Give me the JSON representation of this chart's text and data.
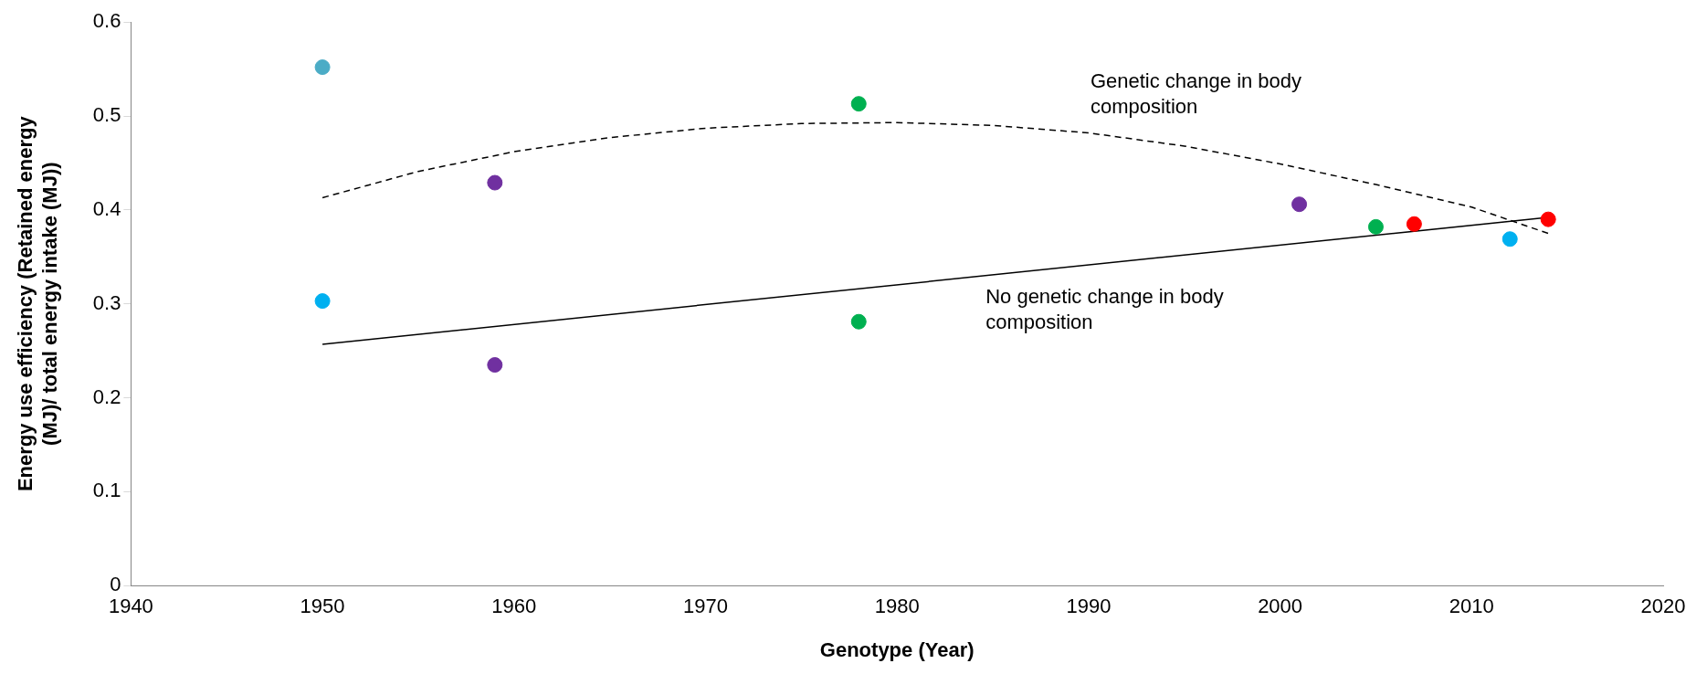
{
  "chart_data": {
    "type": "scatter",
    "xlabel": "Genotype (Year)",
    "ylabel": "Energy use efficiency (Retained energy (MJ)/ total energy intake (MJ))",
    "xlim": [
      1940,
      2020
    ],
    "xticks": [
      1940,
      1950,
      1960,
      1970,
      1980,
      1990,
      2000,
      2010,
      2020
    ],
    "ylim": [
      0,
      0.6
    ],
    "yticks": [
      0,
      0.1,
      0.2,
      0.3,
      0.4,
      0.5,
      0.6
    ],
    "grid": false,
    "legend": false,
    "series": [
      {
        "type": "scatter",
        "marker": "circle",
        "x": [
          1950,
          1959,
          1978,
          2001,
          2005,
          2007,
          2012,
          2014
        ],
        "values": [
          0.303,
          0.235,
          0.281,
          0.406,
          0.382,
          0.385,
          0.369,
          0.39
        ],
        "colors": [
          "#00b0f0",
          "#7030a0",
          "#00b050",
          "#7030a0",
          "#00b050",
          "#ff0000",
          "#00b0f0",
          "#ff0000"
        ]
      },
      {
        "type": "scatter",
        "marker": "circle",
        "x": [
          1950,
          1959,
          1978
        ],
        "values": [
          0.552,
          0.429,
          0.513
        ],
        "colors": [
          "#4bacc6",
          "#7030a0",
          "#00b050"
        ]
      },
      {
        "type": "line",
        "color": "#000000",
        "line_style": "solid",
        "x": [
          1950,
          2014
        ],
        "values": [
          0.257,
          0.392
        ]
      },
      {
        "type": "line",
        "color": "#000000",
        "line_style": "dashed",
        "x": [
          1950,
          1955,
          1960,
          1965,
          1970,
          1975,
          1980,
          1985,
          1990,
          1995,
          2000,
          2005,
          2010,
          2014
        ],
        "values": [
          0.413,
          0.441,
          0.462,
          0.477,
          0.487,
          0.492,
          0.493,
          0.49,
          0.482,
          0.468,
          0.449,
          0.427,
          0.403,
          0.375
        ]
      }
    ],
    "annotations": [
      "Genetic change in body composition",
      "No genetic change in body composition"
    ]
  }
}
